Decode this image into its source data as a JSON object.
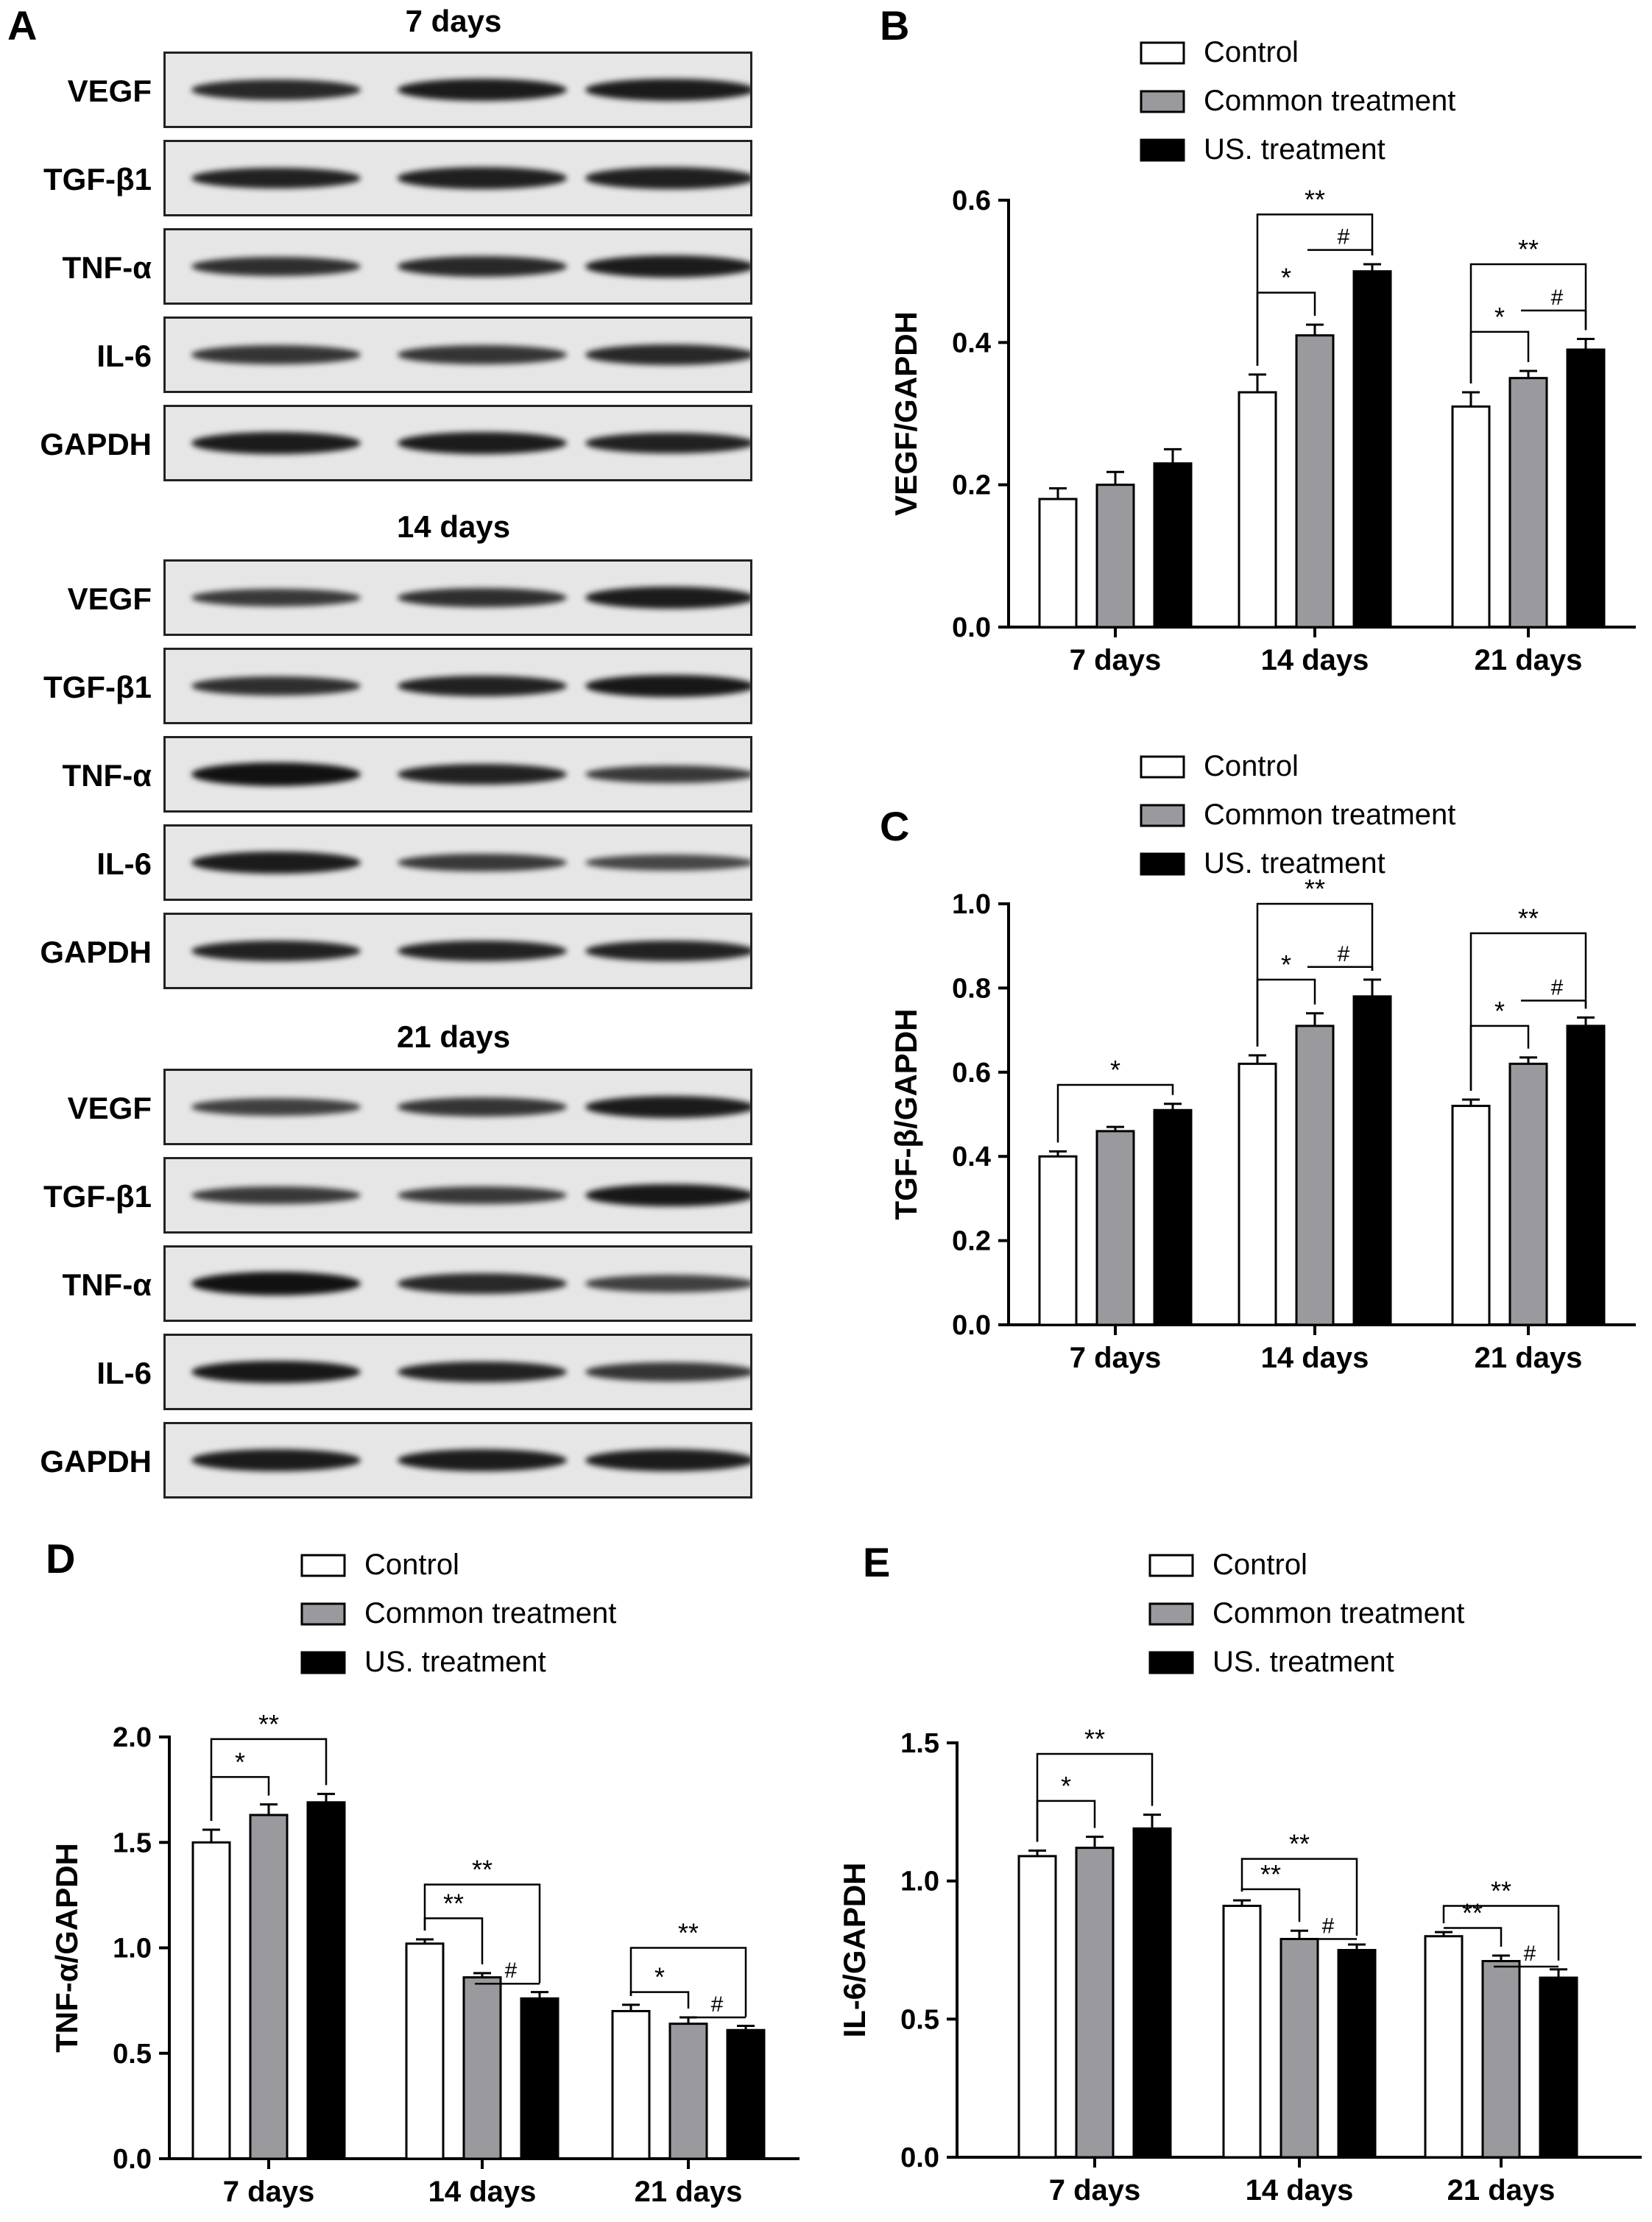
{
  "panels": {
    "A": "A",
    "B": "B",
    "C": "C",
    "D": "D",
    "E": "E"
  },
  "blots": [
    {
      "title": "7 days",
      "rows": [
        {
          "label": "VEGF",
          "intensity": [
            0.8,
            0.9,
            0.9
          ]
        },
        {
          "label": "TGF-β1",
          "intensity": [
            0.85,
            0.88,
            0.88
          ]
        },
        {
          "label": "TNF-α",
          "intensity": [
            0.75,
            0.8,
            0.9
          ]
        },
        {
          "label": "IL-6",
          "intensity": [
            0.7,
            0.7,
            0.8
          ]
        },
        {
          "label": "GAPDH",
          "intensity": [
            0.9,
            0.9,
            0.85
          ]
        }
      ]
    },
    {
      "title": "14 days",
      "rows": [
        {
          "label": "VEGF",
          "intensity": [
            0.65,
            0.75,
            0.9
          ]
        },
        {
          "label": "TGF-β1",
          "intensity": [
            0.75,
            0.85,
            0.95
          ]
        },
        {
          "label": "TNF-α",
          "intensity": [
            1.0,
            0.85,
            0.65
          ]
        },
        {
          "label": "IL-6",
          "intensity": [
            0.9,
            0.65,
            0.55
          ]
        },
        {
          "label": "GAPDH",
          "intensity": [
            0.85,
            0.85,
            0.85
          ]
        }
      ]
    },
    {
      "title": "21 days",
      "rows": [
        {
          "label": "VEGF",
          "intensity": [
            0.6,
            0.7,
            0.9
          ]
        },
        {
          "label": "TGF-β1",
          "intensity": [
            0.65,
            0.65,
            0.95
          ]
        },
        {
          "label": "TNF-α",
          "intensity": [
            1.0,
            0.8,
            0.6
          ]
        },
        {
          "label": "IL-6",
          "intensity": [
            0.95,
            0.85,
            0.7
          ]
        },
        {
          "label": "GAPDH",
          "intensity": [
            0.9,
            0.9,
            0.9
          ]
        }
      ]
    }
  ],
  "legend": [
    "Control",
    "Common treatment",
    "US. treatment"
  ],
  "colors": {
    "control": "#ffffff",
    "common": "#9a9a9e",
    "us": "#000000"
  },
  "chart_data": [
    {
      "type": "bar",
      "panel": "B",
      "ylabel": "VEGF/GAPDH",
      "categories": [
        "7 days",
        "14 days",
        "21 days"
      ],
      "ylim": [
        0,
        0.6
      ],
      "yticks": [
        "0.0",
        "0.2",
        "0.4",
        "0.6"
      ],
      "series": [
        {
          "name": "Control",
          "values": [
            0.18,
            0.33,
            0.31
          ],
          "errors": [
            0.015,
            0.025,
            0.02
          ]
        },
        {
          "name": "Common treatment",
          "values": [
            0.2,
            0.41,
            0.35
          ],
          "errors": [
            0.018,
            0.015,
            0.01
          ]
        },
        {
          "name": "US. treatment",
          "values": [
            0.23,
            0.5,
            0.39
          ],
          "errors": [
            0.02,
            0.01,
            0.015
          ]
        }
      ],
      "significance": [
        {
          "group": 1,
          "from": 0,
          "to": 2,
          "label": "**",
          "level": 0.58
        },
        {
          "group": 1,
          "from": 1,
          "to": 2,
          "label": "#",
          "level": 0.53
        },
        {
          "group": 1,
          "from": 0,
          "to": 1,
          "label": "*",
          "level": 0.47
        },
        {
          "group": 2,
          "from": 0,
          "to": 2,
          "label": "**",
          "level": 0.51
        },
        {
          "group": 2,
          "from": 1,
          "to": 2,
          "label": "#",
          "level": 0.445
        },
        {
          "group": 2,
          "from": 0,
          "to": 1,
          "label": "*",
          "level": 0.415
        }
      ]
    },
    {
      "type": "bar",
      "panel": "C",
      "ylabel": "TGF-β/GAPDH",
      "categories": [
        "7 days",
        "14 days",
        "21 days"
      ],
      "ylim": [
        0,
        1.0
      ],
      "yticks": [
        "0.0",
        "0.2",
        "0.4",
        "0.6",
        "0.8",
        "1.0"
      ],
      "series": [
        {
          "name": "Control",
          "values": [
            0.4,
            0.62,
            0.52
          ],
          "errors": [
            0.012,
            0.02,
            0.015
          ]
        },
        {
          "name": "Common treatment",
          "values": [
            0.46,
            0.71,
            0.62
          ],
          "errors": [
            0.01,
            0.03,
            0.015
          ]
        },
        {
          "name": "US. treatment",
          "values": [
            0.51,
            0.78,
            0.71
          ],
          "errors": [
            0.015,
            0.04,
            0.02
          ]
        }
      ],
      "significance": [
        {
          "group": 0,
          "from": 0,
          "to": 2,
          "label": "*",
          "level": 0.57
        },
        {
          "group": 1,
          "from": 0,
          "to": 2,
          "label": "**",
          "level": 1.0
        },
        {
          "group": 1,
          "from": 1,
          "to": 2,
          "label": "#",
          "level": 0.85
        },
        {
          "group": 1,
          "from": 0,
          "to": 1,
          "label": "*",
          "level": 0.82
        },
        {
          "group": 2,
          "from": 0,
          "to": 2,
          "label": "**",
          "level": 0.93
        },
        {
          "group": 2,
          "from": 1,
          "to": 2,
          "label": "#",
          "level": 0.77
        },
        {
          "group": 2,
          "from": 0,
          "to": 1,
          "label": "*",
          "level": 0.71
        }
      ]
    },
    {
      "type": "bar",
      "panel": "D",
      "ylabel": "TNF-α/GAPDH",
      "categories": [
        "7 days",
        "14 days",
        "21 days"
      ],
      "ylim": [
        0,
        2.0
      ],
      "yticks": [
        "0.0",
        "0.5",
        "1.0",
        "1.5",
        "2.0"
      ],
      "series": [
        {
          "name": "Control",
          "values": [
            1.5,
            1.02,
            0.7
          ],
          "errors": [
            0.06,
            0.02,
            0.03
          ]
        },
        {
          "name": "Common treatment",
          "values": [
            1.63,
            0.86,
            0.64
          ],
          "errors": [
            0.05,
            0.02,
            0.03
          ]
        },
        {
          "name": "US. treatment",
          "values": [
            1.69,
            0.76,
            0.61
          ],
          "errors": [
            0.04,
            0.03,
            0.02
          ]
        }
      ],
      "significance": [
        {
          "group": 0,
          "from": 0,
          "to": 2,
          "label": "**",
          "level": 1.99
        },
        {
          "group": 0,
          "from": 0,
          "to": 1,
          "label": "*",
          "level": 1.81
        },
        {
          "group": 1,
          "from": 0,
          "to": 2,
          "label": "**",
          "level": 1.3
        },
        {
          "group": 1,
          "from": 0,
          "to": 1,
          "label": "**",
          "level": 1.14
        },
        {
          "group": 1,
          "from": 1,
          "to": 2,
          "label": "#",
          "level": 0.83
        },
        {
          "group": 2,
          "from": 0,
          "to": 2,
          "label": "**",
          "level": 1.0
        },
        {
          "group": 2,
          "from": 0,
          "to": 1,
          "label": "*",
          "level": 0.79
        },
        {
          "group": 2,
          "from": 1,
          "to": 2,
          "label": "#",
          "level": 0.67
        }
      ]
    },
    {
      "type": "bar",
      "panel": "E",
      "ylabel": "IL-6/GAPDH",
      "categories": [
        "7 days",
        "14 days",
        "21 days"
      ],
      "ylim": [
        0,
        1.5
      ],
      "yticks": [
        "0.0",
        "0.5",
        "1.0",
        "1.5"
      ],
      "series": [
        {
          "name": "Control",
          "values": [
            1.09,
            0.91,
            0.8
          ],
          "errors": [
            0.02,
            0.02,
            0.015
          ]
        },
        {
          "name": "Common treatment",
          "values": [
            1.12,
            0.79,
            0.71
          ],
          "errors": [
            0.04,
            0.03,
            0.02
          ]
        },
        {
          "name": "US. treatment",
          "values": [
            1.19,
            0.75,
            0.65
          ],
          "errors": [
            0.05,
            0.02,
            0.03
          ]
        }
      ],
      "significance": [
        {
          "group": 0,
          "from": 0,
          "to": 2,
          "label": "**",
          "level": 1.46
        },
        {
          "group": 0,
          "from": 0,
          "to": 1,
          "label": "*",
          "level": 1.29
        },
        {
          "group": 1,
          "from": 0,
          "to": 2,
          "label": "**",
          "level": 1.08
        },
        {
          "group": 1,
          "from": 0,
          "to": 1,
          "label": "**",
          "level": 0.97
        },
        {
          "group": 1,
          "from": 1,
          "to": 2,
          "label": "#",
          "level": 0.79
        },
        {
          "group": 2,
          "from": 0,
          "to": 2,
          "label": "**",
          "level": 0.91
        },
        {
          "group": 2,
          "from": 0,
          "to": 1,
          "label": "**",
          "level": 0.83
        },
        {
          "group": 2,
          "from": 1,
          "to": 2,
          "label": "#",
          "level": 0.69
        }
      ]
    }
  ]
}
